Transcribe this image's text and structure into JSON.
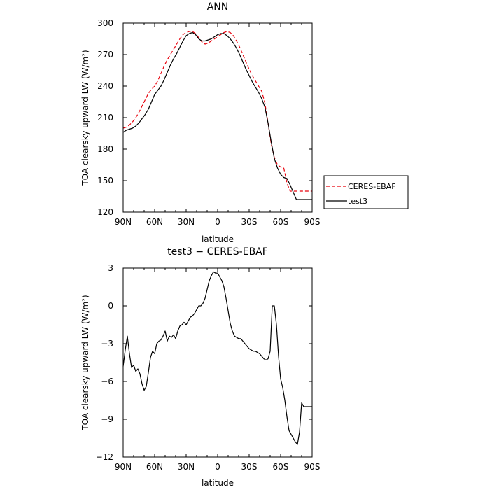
{
  "chart_data": [
    {
      "type": "line",
      "title": "ANN",
      "xlabel": "latitude",
      "ylabel": "TOA clearsky upward LW (W/m²)",
      "xlim": [
        90,
        -90
      ],
      "ylim": [
        120,
        300
      ],
      "xticks": [
        90,
        60,
        30,
        0,
        -30,
        -60,
        -90
      ],
      "xtick_labels": [
        "90N",
        "60N",
        "30N",
        "0",
        "30S",
        "60S",
        "90S"
      ],
      "yticks": [
        120,
        150,
        180,
        210,
        240,
        270,
        300
      ],
      "ytick_labels": [
        "120",
        "150",
        "180",
        "210",
        "240",
        "270",
        "300"
      ],
      "legend_position": "right",
      "series": [
        {
          "name": "CERES-EBAF",
          "color": "#e8000b",
          "dashed": true,
          "x": [
            90,
            87,
            84,
            81,
            78,
            75,
            72,
            69,
            66,
            63,
            60,
            57,
            54,
            51,
            48,
            45,
            42,
            39,
            36,
            33,
            30,
            27,
            24,
            21,
            18,
            15,
            12,
            9,
            6,
            3,
            0,
            -3,
            -6,
            -9,
            -12,
            -15,
            -18,
            -21,
            -24,
            -27,
            -30,
            -33,
            -36,
            -39,
            -42,
            -45,
            -48,
            -51,
            -54,
            -57,
            -60,
            -63,
            -66,
            -69,
            -72,
            -75,
            -78,
            -81,
            -84,
            -87,
            -90
          ],
          "y": [
            200,
            201,
            203,
            206,
            210,
            215,
            221,
            227,
            233,
            237,
            240,
            245,
            252,
            259,
            265,
            270,
            275,
            280,
            285,
            289,
            291,
            292,
            292,
            290,
            286,
            282,
            280,
            281,
            283,
            285,
            287,
            289,
            291,
            292,
            291,
            288,
            283,
            277,
            270,
            263,
            256,
            250,
            245,
            240,
            235,
            224,
            205,
            185,
            172,
            165,
            163,
            162,
            148,
            140,
            140,
            140,
            140,
            140,
            140,
            140,
            140
          ]
        },
        {
          "name": "test3",
          "color": "#000000",
          "dashed": false,
          "x": [
            90,
            87,
            84,
            81,
            78,
            75,
            72,
            69,
            66,
            63,
            60,
            57,
            54,
            51,
            48,
            45,
            42,
            39,
            36,
            33,
            30,
            27,
            24,
            21,
            18,
            15,
            12,
            9,
            6,
            3,
            0,
            -3,
            -6,
            -9,
            -12,
            -15,
            -18,
            -21,
            -24,
            -27,
            -30,
            -33,
            -36,
            -39,
            -42,
            -45,
            -48,
            -51,
            -54,
            -57,
            -60,
            -63,
            -66,
            -69,
            -72,
            -75,
            -78,
            -81,
            -84,
            -87,
            -90
          ],
          "y": [
            196,
            198,
            199,
            200,
            202,
            205,
            209,
            213,
            218,
            225,
            232,
            236,
            240,
            246,
            253,
            260,
            266,
            271,
            277,
            283,
            288,
            290,
            291,
            289,
            285,
            283,
            283,
            284,
            285,
            287,
            289,
            290,
            290,
            288,
            285,
            281,
            276,
            270,
            263,
            256,
            250,
            244,
            239,
            234,
            228,
            220,
            205,
            187,
            171,
            162,
            156,
            153,
            152,
            146,
            139,
            132,
            132,
            132,
            132,
            132,
            132
          ]
        }
      ]
    },
    {
      "type": "line",
      "title": "test3 − CERES-EBAF",
      "xlabel": "latitude",
      "ylabel": "TOA clearsky upward LW (W/m²)",
      "xlim": [
        90,
        -90
      ],
      "ylim": [
        -12,
        3
      ],
      "xticks": [
        90,
        60,
        30,
        0,
        -30,
        -60,
        -90
      ],
      "xtick_labels": [
        "90N",
        "60N",
        "30N",
        "0",
        "30S",
        "60S",
        "90S"
      ],
      "yticks": [
        -12,
        -9,
        -6,
        -3,
        0,
        3
      ],
      "ytick_labels": [
        "−12",
        "−9",
        "−6",
        "−3",
        "0",
        "3"
      ],
      "series": [
        {
          "color": "#000000",
          "dashed": false,
          "x": [
            90,
            88,
            86,
            84,
            82,
            80,
            78,
            76,
            74,
            72,
            70,
            68,
            66,
            64,
            62,
            60,
            58,
            56,
            54,
            52,
            50,
            48,
            46,
            44,
            42,
            40,
            38,
            36,
            34,
            32,
            30,
            28,
            26,
            24,
            22,
            20,
            18,
            16,
            14,
            12,
            10,
            8,
            6,
            4,
            2,
            0,
            -2,
            -4,
            -6,
            -8,
            -10,
            -12,
            -14,
            -16,
            -18,
            -20,
            -22,
            -24,
            -26,
            -28,
            -30,
            -32,
            -34,
            -36,
            -38,
            -40,
            -42,
            -44,
            -46,
            -48,
            -50,
            -52,
            -54,
            -56,
            -58,
            -60,
            -62,
            -64,
            -66,
            -68,
            -70,
            -72,
            -74,
            -76,
            -78,
            -80,
            -82,
            -84,
            -86,
            -88,
            -90
          ],
          "y": [
            -4.8,
            -3.5,
            -2.4,
            -3.8,
            -4.9,
            -4.7,
            -5.2,
            -5.0,
            -5.4,
            -6.2,
            -6.7,
            -6.4,
            -5.3,
            -4.1,
            -3.6,
            -3.8,
            -3.0,
            -2.8,
            -2.7,
            -2.4,
            -2.0,
            -2.8,
            -2.4,
            -2.5,
            -2.3,
            -2.6,
            -2.0,
            -1.6,
            -1.5,
            -1.3,
            -1.5,
            -1.2,
            -0.9,
            -0.8,
            -0.6,
            -0.3,
            0.0,
            0.0,
            0.2,
            0.6,
            1.3,
            2.0,
            2.4,
            2.7,
            2.6,
            2.6,
            2.3,
            2.0,
            1.5,
            0.6,
            -0.4,
            -1.4,
            -2.0,
            -2.4,
            -2.5,
            -2.6,
            -2.6,
            -2.8,
            -3.0,
            -3.2,
            -3.4,
            -3.5,
            -3.6,
            -3.6,
            -3.7,
            -3.8,
            -4.0,
            -4.2,
            -4.3,
            -4.2,
            -3.6,
            0.0,
            0.0,
            -1.5,
            -4.0,
            -5.8,
            -6.5,
            -7.5,
            -8.8,
            -9.9,
            -10.2,
            -10.5,
            -10.8,
            -11.0,
            -10.0,
            -7.7,
            -8.0,
            -8.0,
            -8.0,
            -8.0,
            -8.0
          ]
        }
      ]
    }
  ],
  "legend": {
    "items": [
      {
        "label": "CERES-EBAF",
        "color": "#e8000b",
        "dashed": true
      },
      {
        "label": "test3",
        "color": "#000000",
        "dashed": false
      }
    ]
  }
}
